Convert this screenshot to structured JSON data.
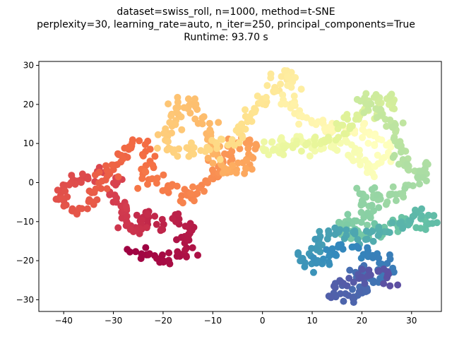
{
  "chart_data": {
    "type": "scatter",
    "title_lines": [
      "dataset=swiss_roll, n=1000, method=t-SNE",
      "perplexity=30, learning_rate=auto, n_iter=250, principal_components=True",
      "Runtime: 93.70 s"
    ],
    "xlabel": "",
    "ylabel": "",
    "xlim": [
      -45,
      36
    ],
    "ylim": [
      -33,
      31
    ],
    "x_ticks": [
      -40,
      -30,
      -20,
      -10,
      0,
      10,
      20,
      30
    ],
    "y_ticks": [
      -30,
      -20,
      -10,
      0,
      10,
      20,
      30
    ],
    "grid": false,
    "colormap": "Spectral",
    "marker_color_note": "points colored along the manifold parameter from dark red through orange, yellow, green to blue",
    "path": [
      [
        -27,
        -17
      ],
      [
        -23,
        -18
      ],
      [
        -19,
        -20
      ],
      [
        -15,
        -19
      ],
      [
        -16,
        -15
      ],
      [
        -14,
        -12
      ],
      [
        -17,
        -9
      ],
      [
        -20,
        -11
      ],
      [
        -22,
        -11
      ],
      [
        -24,
        -8
      ],
      [
        -25,
        -13
      ],
      [
        -27,
        -12
      ],
      [
        -28,
        -7
      ],
      [
        -30,
        -4
      ],
      [
        -30,
        1
      ],
      [
        -32,
        3
      ],
      [
        -35,
        1
      ],
      [
        -38,
        1
      ],
      [
        -41,
        -3
      ],
      [
        -39,
        -6
      ],
      [
        -36,
        -7
      ],
      [
        -33,
        -2
      ],
      [
        -31,
        3
      ],
      [
        -29,
        6
      ],
      [
        -27,
        9
      ],
      [
        -25,
        10
      ],
      [
        -23,
        8
      ],
      [
        -24,
        3
      ],
      [
        -22,
        1
      ],
      [
        -20,
        -1
      ],
      [
        -17,
        -1
      ],
      [
        -15,
        -4
      ],
      [
        -13,
        -2
      ],
      [
        -11,
        0
      ],
      [
        -9,
        2
      ],
      [
        -8,
        5
      ],
      [
        -7,
        8
      ],
      [
        -5,
        10
      ],
      [
        -3,
        10
      ],
      [
        -1,
        9
      ],
      [
        -3,
        5
      ],
      [
        -6,
        2
      ],
      [
        -10,
        7
      ],
      [
        -11,
        12
      ],
      [
        -12,
        17
      ],
      [
        -14,
        20
      ],
      [
        -17,
        20
      ],
      [
        -18,
        14
      ],
      [
        -20,
        9
      ],
      [
        -17,
        8
      ],
      [
        -11,
        9
      ],
      [
        -6,
        10
      ],
      [
        -3,
        16
      ],
      [
        -1,
        20
      ],
      [
        1,
        22
      ],
      [
        3,
        26
      ],
      [
        6,
        28
      ],
      [
        6,
        24
      ],
      [
        5,
        20
      ],
      [
        8,
        17
      ],
      [
        11,
        15
      ],
      [
        14,
        13
      ],
      [
        17,
        13
      ],
      [
        20,
        14
      ],
      [
        22,
        11
      ],
      [
        25,
        9
      ],
      [
        23,
        4
      ],
      [
        21,
        3
      ],
      [
        19,
        7
      ],
      [
        17,
        10
      ],
      [
        14,
        10
      ],
      [
        11,
        9
      ],
      [
        7,
        11
      ],
      [
        3,
        11
      ],
      [
        1,
        8
      ],
      [
        4,
        8
      ],
      [
        9,
        10
      ],
      [
        14,
        11
      ],
      [
        18,
        17
      ],
      [
        21,
        17
      ],
      [
        24,
        18
      ],
      [
        26,
        21
      ],
      [
        24,
        23
      ],
      [
        22,
        21
      ],
      [
        20,
        21
      ],
      [
        24,
        18
      ],
      [
        27,
        13
      ],
      [
        27,
        8
      ],
      [
        28,
        5
      ],
      [
        30,
        4
      ],
      [
        33,
        4
      ],
      [
        31,
        0
      ],
      [
        29,
        -2
      ],
      [
        27,
        -2
      ],
      [
        25,
        -4
      ],
      [
        23,
        -5
      ],
      [
        21,
        -2
      ],
      [
        20,
        -5
      ],
      [
        22,
        -7
      ],
      [
        20,
        -10
      ],
      [
        17,
        -9
      ],
      [
        15,
        -11
      ],
      [
        17,
        -14
      ],
      [
        21,
        -13
      ],
      [
        24,
        -12
      ],
      [
        26,
        -10
      ],
      [
        29,
        -10
      ],
      [
        32,
        -11
      ],
      [
        34,
        -9
      ],
      [
        31,
        -8
      ],
      [
        28,
        -11
      ],
      [
        24,
        -13
      ],
      [
        20,
        -15
      ],
      [
        18,
        -13
      ],
      [
        16,
        -13
      ],
      [
        13,
        -12
      ],
      [
        12,
        -16
      ],
      [
        10,
        -17
      ],
      [
        8,
        -19
      ],
      [
        10,
        -22
      ],
      [
        12,
        -20
      ],
      [
        14,
        -17
      ],
      [
        18,
        -17
      ],
      [
        21,
        -18
      ],
      [
        24,
        -20
      ],
      [
        26,
        -22
      ],
      [
        25,
        -24
      ],
      [
        22,
        -25
      ],
      [
        20,
        -22
      ],
      [
        19,
        -26
      ],
      [
        21,
        -28
      ],
      [
        18,
        -30
      ],
      [
        15,
        -28
      ],
      [
        14,
        -27
      ],
      [
        17,
        -26
      ],
      [
        20,
        -24
      ],
      [
        23,
        -23
      ],
      [
        26,
        -26
      ]
    ]
  }
}
